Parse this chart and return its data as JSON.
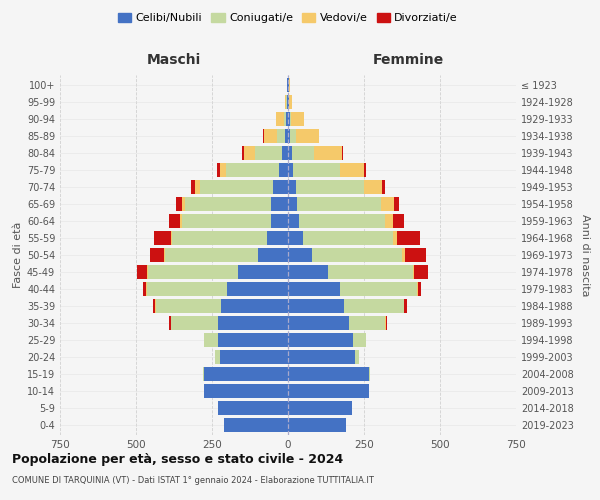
{
  "age_groups": [
    "0-4",
    "5-9",
    "10-14",
    "15-19",
    "20-24",
    "25-29",
    "30-34",
    "35-39",
    "40-44",
    "45-49",
    "50-54",
    "55-59",
    "60-64",
    "65-69",
    "70-74",
    "75-79",
    "80-84",
    "85-89",
    "90-94",
    "95-99",
    "100+"
  ],
  "birth_years": [
    "2019-2023",
    "2014-2018",
    "2009-2013",
    "2004-2008",
    "1999-2003",
    "1994-1998",
    "1989-1993",
    "1984-1988",
    "1979-1983",
    "1974-1978",
    "1969-1973",
    "1964-1968",
    "1959-1963",
    "1954-1958",
    "1949-1953",
    "1944-1948",
    "1939-1943",
    "1934-1938",
    "1929-1933",
    "1924-1928",
    "≤ 1923"
  ],
  "colors": {
    "celibi": "#4472C4",
    "coniugati": "#c5d9a0",
    "vedovi": "#f5c96a",
    "divorziati": "#cc1111"
  },
  "males": {
    "celibi": [
      210,
      230,
      275,
      275,
      225,
      230,
      230,
      220,
      200,
      165,
      100,
      70,
      55,
      55,
      50,
      30,
      20,
      10,
      5,
      3,
      2
    ],
    "coniugati": [
      0,
      0,
      0,
      5,
      15,
      45,
      155,
      215,
      265,
      295,
      305,
      310,
      295,
      285,
      240,
      175,
      90,
      25,
      8,
      2,
      0
    ],
    "vedovi": [
      0,
      0,
      0,
      0,
      0,
      0,
      1,
      2,
      2,
      3,
      3,
      5,
      5,
      10,
      15,
      20,
      35,
      45,
      25,
      5,
      1
    ],
    "divorziati": [
      0,
      0,
      0,
      0,
      0,
      2,
      5,
      8,
      10,
      35,
      45,
      55,
      35,
      20,
      15,
      10,
      5,
      2,
      0,
      0,
      0
    ]
  },
  "females": {
    "celibi": [
      190,
      210,
      265,
      265,
      220,
      215,
      200,
      185,
      170,
      130,
      80,
      50,
      35,
      30,
      25,
      15,
      12,
      8,
      5,
      3,
      2
    ],
    "coniugati": [
      0,
      0,
      0,
      5,
      15,
      40,
      120,
      195,
      255,
      280,
      295,
      295,
      285,
      275,
      225,
      155,
      75,
      18,
      6,
      1,
      0
    ],
    "vedovi": [
      0,
      0,
      0,
      0,
      0,
      0,
      1,
      2,
      3,
      5,
      10,
      15,
      25,
      45,
      60,
      80,
      90,
      75,
      40,
      10,
      3
    ],
    "divorziati": [
      0,
      0,
      0,
      0,
      0,
      2,
      5,
      10,
      10,
      45,
      70,
      75,
      35,
      15,
      10,
      8,
      5,
      2,
      0,
      0,
      0
    ]
  },
  "title": "Popolazione per età, sesso e stato civile - 2024",
  "subtitle": "COMUNE DI TARQUINIA (VT) - Dati ISTAT 1° gennaio 2024 - Elaborazione TUTTITALIA.IT",
  "xlabel_left": "Maschi",
  "xlabel_right": "Femmine",
  "ylabel_left": "Fasce di età",
  "ylabel_right": "Anni di nascita",
  "xlim": 750,
  "legend_labels": [
    "Celibi/Nubili",
    "Coniugati/e",
    "Vedovi/e",
    "Divorziati/e"
  ],
  "bg_color": "#f5f5f5",
  "grid_color": "#cccccc"
}
